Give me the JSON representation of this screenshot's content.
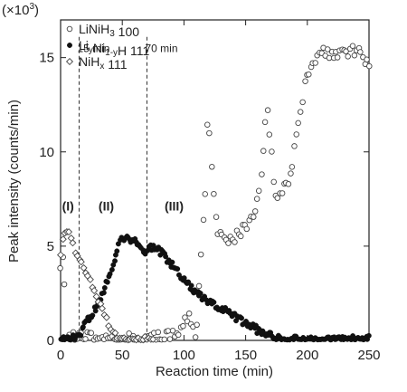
{
  "chart_data": {
    "type": "scatter",
    "xlabel": "Reaction time (min)",
    "ylabel": "Peak intensity (counts/min)",
    "y_multiplier": "(×10",
    "y_multiplier_exp": "3",
    "y_multiplier_close": ")",
    "xlim": [
      0,
      250
    ],
    "ylim": [
      0,
      17
    ],
    "x_ticks": [
      0,
      50,
      100,
      150,
      200,
      250
    ],
    "y_ticks": [
      0,
      5,
      10,
      15
    ],
    "x_tick_labels": [
      "0",
      "50",
      "100",
      "150",
      "200",
      "250"
    ],
    "y_tick_labels": [
      "0",
      "5",
      "10",
      "15"
    ],
    "legend_position": "top-left",
    "legend": [
      {
        "marker": "open-circle",
        "parts": [
          [
            "LiNiH",
            ""
          ],
          [
            "3",
            "sub"
          ],
          [
            " 100",
            ""
          ]
        ]
      },
      {
        "marker": "filled-circle",
        "parts": [
          [
            "Li",
            ""
          ],
          [
            "y",
            "sub"
          ],
          [
            "Ni",
            ""
          ],
          [
            "1-y",
            "sub"
          ],
          [
            "H 111",
            ""
          ]
        ]
      },
      {
        "marker": "open-diamond",
        "parts": [
          [
            "NiH",
            ""
          ],
          [
            "x",
            "sub"
          ],
          [
            " 111",
            ""
          ]
        ]
      }
    ],
    "annotations": {
      "vlines": [
        {
          "x": 15,
          "label": "15 min"
        },
        {
          "x": 70,
          "label": "70 min"
        }
      ],
      "regions": [
        {
          "label": "(I)",
          "x": 6,
          "y": 6.9
        },
        {
          "label": "(II)",
          "x": 37,
          "y": 6.9
        },
        {
          "label": "(III)",
          "x": 92,
          "y": 6.9
        }
      ]
    },
    "series": [
      {
        "marker": "open-circle",
        "anchors": [
          [
            0,
            3.6
          ],
          [
            2,
            4.8
          ],
          [
            5,
            0.1
          ],
          [
            60,
            0.1
          ],
          [
            80,
            0.1
          ],
          [
            88,
            0.4
          ],
          [
            95,
            0.4
          ],
          [
            100,
            0.8
          ],
          [
            104,
            1.4
          ],
          [
            106,
            0.6
          ],
          [
            110,
            0.5
          ],
          [
            113,
            3.5
          ],
          [
            117,
            7.5
          ],
          [
            118,
            12.0
          ],
          [
            121,
            11.0
          ],
          [
            124,
            8.0
          ],
          [
            128,
            5.5
          ],
          [
            135,
            5.3
          ],
          [
            145,
            5.7
          ],
          [
            150,
            6.0
          ],
          [
            155,
            6.5
          ],
          [
            160,
            7.5
          ],
          [
            164,
            9.5
          ],
          [
            166,
            11.5
          ],
          [
            168,
            12.0
          ],
          [
            170,
            10.8
          ],
          [
            173,
            8.0
          ],
          [
            177,
            7.5
          ],
          [
            181,
            8.3
          ],
          [
            185,
            8.6
          ],
          [
            188,
            9.5
          ],
          [
            192,
            11.0
          ],
          [
            196,
            12.5
          ],
          [
            199,
            14.0
          ],
          [
            203,
            14.8
          ],
          [
            210,
            15.3
          ],
          [
            220,
            15.3
          ],
          [
            226,
            15.2
          ],
          [
            232,
            15.4
          ],
          [
            240,
            15.2
          ],
          [
            245,
            15.1
          ],
          [
            250,
            14.8
          ]
        ],
        "count": 150,
        "noise": 0.35
      },
      {
        "marker": "filled-circle",
        "anchors": [
          [
            0,
            0.05
          ],
          [
            12,
            0.1
          ],
          [
            16,
            0.4
          ],
          [
            20,
            0.9
          ],
          [
            25,
            1.3
          ],
          [
            30,
            1.9
          ],
          [
            35,
            2.6
          ],
          [
            40,
            3.5
          ],
          [
            44,
            4.4
          ],
          [
            47,
            5.2
          ],
          [
            50,
            5.4
          ],
          [
            56,
            5.4
          ],
          [
            60,
            5.3
          ],
          [
            64,
            5.1
          ],
          [
            68,
            4.6
          ],
          [
            72,
            4.9
          ],
          [
            76,
            5.0
          ],
          [
            82,
            4.6
          ],
          [
            90,
            4.0
          ],
          [
            100,
            3.2
          ],
          [
            110,
            2.5
          ],
          [
            120,
            2.0
          ],
          [
            130,
            1.7
          ],
          [
            140,
            1.3
          ],
          [
            150,
            0.9
          ],
          [
            160,
            0.55
          ],
          [
            170,
            0.25
          ],
          [
            180,
            0.1
          ],
          [
            200,
            0.05
          ],
          [
            250,
            0.05
          ]
        ],
        "count": 230,
        "noise": 0.2
      },
      {
        "marker": "open-diamond",
        "anchors": [
          [
            0,
            4.6
          ],
          [
            3,
            5.8
          ],
          [
            5,
            5.9
          ],
          [
            8,
            5.5
          ],
          [
            12,
            4.8
          ],
          [
            18,
            4.0
          ],
          [
            25,
            3.0
          ],
          [
            30,
            2.2
          ],
          [
            35,
            1.4
          ],
          [
            40,
            0.7
          ],
          [
            45,
            0.25
          ],
          [
            50,
            0.05
          ],
          [
            75,
            0.05
          ]
        ],
        "count": 45,
        "noise": 0.15
      }
    ]
  }
}
